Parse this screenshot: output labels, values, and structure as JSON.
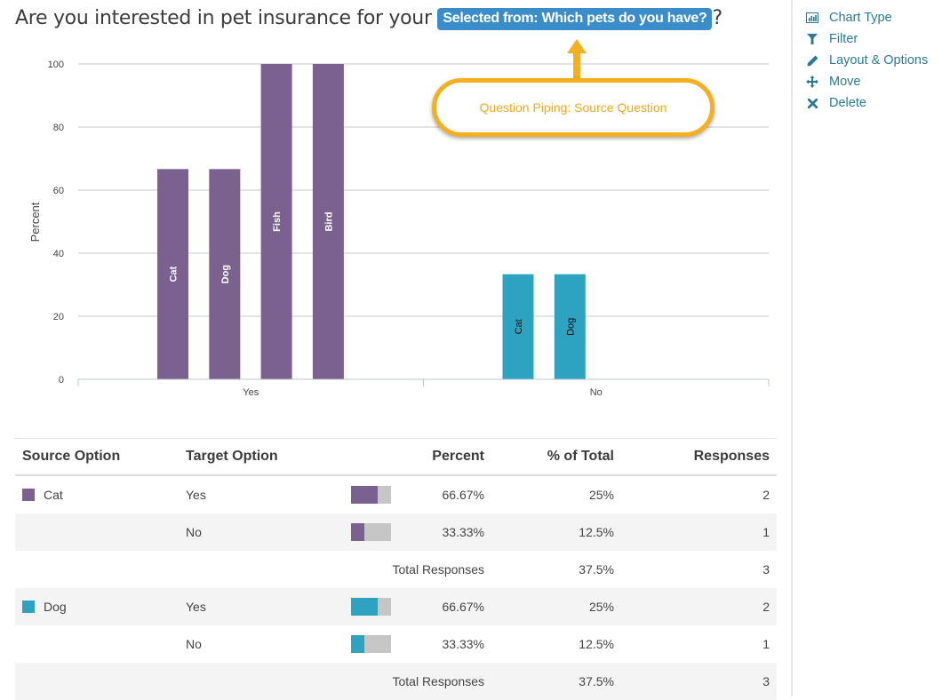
{
  "question": {
    "prefix": "Are you interested in pet insurance for your",
    "pipe_badge": "Selected from: Which pets do you have?",
    "suffix": "?"
  },
  "callout": {
    "text": "Question Piping: Source Question",
    "color": "#f5b022"
  },
  "side_menu": {
    "items": [
      {
        "label": "Chart Type",
        "icon": "bar-chart-icon"
      },
      {
        "label": "Filter",
        "icon": "filter-icon"
      },
      {
        "label": "Layout & Options",
        "icon": "pencil-icon"
      },
      {
        "label": "Move",
        "icon": "move-arrows-icon"
      },
      {
        "label": "Delete",
        "icon": "close-icon"
      }
    ]
  },
  "colors": {
    "cat": "#7b6190",
    "dog": "#2ea3c1",
    "accent": "#2b7a93",
    "badge": "#3a8dc8",
    "bar_track": "#c6c6c6"
  },
  "chart_data": {
    "type": "bar",
    "title": "",
    "xlabel": "",
    "ylabel": "Percent",
    "ylim": [
      0,
      100
    ],
    "yticks": [
      0,
      20,
      40,
      60,
      80,
      100
    ],
    "grid": true,
    "legend": "none",
    "categories": [
      "Yes",
      "No"
    ],
    "groups": [
      {
        "category": "Yes",
        "color": "#7b6190",
        "bars": [
          {
            "label": "Cat",
            "value": 66.67
          },
          {
            "label": "Dog",
            "value": 66.67
          },
          {
            "label": "Fish",
            "value": 100
          },
          {
            "label": "Bird",
            "value": 100
          }
        ]
      },
      {
        "category": "No",
        "color": "#2ea3c1",
        "bars": [
          {
            "label": "Cat",
            "value": 33.33
          },
          {
            "label": "Dog",
            "value": 33.33
          }
        ]
      }
    ]
  },
  "table": {
    "headers": {
      "source": "Source Option",
      "target": "Target Option",
      "percent": "Percent",
      "of_total": "% of Total",
      "responses": "Responses"
    },
    "groups": [
      {
        "source": "Cat",
        "color": "#7b6190",
        "rows": [
          {
            "target": "Yes",
            "percent": "66.67%",
            "percent_value": 66.67,
            "of_total": "25%",
            "responses": "2"
          },
          {
            "target": "No",
            "percent": "33.33%",
            "percent_value": 33.33,
            "of_total": "12.5%",
            "responses": "1"
          }
        ],
        "total": {
          "label": "Total Responses",
          "of_total": "37.5%",
          "responses": "3"
        }
      },
      {
        "source": "Dog",
        "color": "#2ea3c1",
        "rows": [
          {
            "target": "Yes",
            "percent": "66.67%",
            "percent_value": 66.67,
            "of_total": "25%",
            "responses": "2"
          },
          {
            "target": "No",
            "percent": "33.33%",
            "percent_value": 33.33,
            "of_total": "12.5%",
            "responses": "1"
          }
        ],
        "total": {
          "label": "Total Responses",
          "of_total": "37.5%",
          "responses": "3"
        }
      }
    ]
  }
}
